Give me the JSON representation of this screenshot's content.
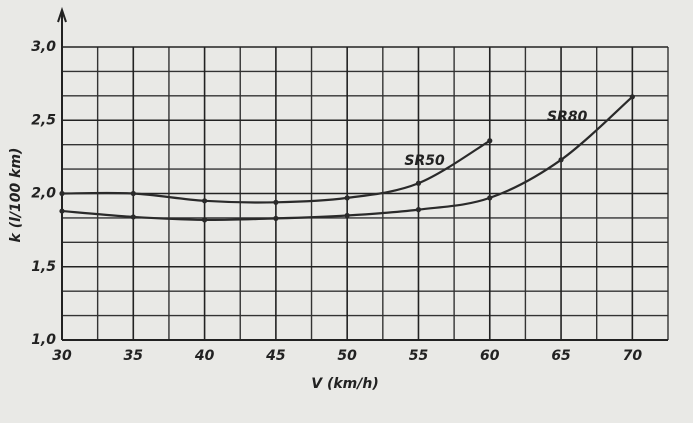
{
  "chart_data": {
    "type": "line",
    "x_label": "V (km/h)",
    "y_label": "k (l/100 km)",
    "xlim": [
      30,
      72.5
    ],
    "ylim": [
      1.0,
      3.0
    ],
    "xticks": [
      30,
      35,
      40,
      45,
      50,
      55,
      60,
      65,
      70
    ],
    "yticks": [
      {
        "value": 1.0,
        "label": "1,0"
      },
      {
        "value": 1.5,
        "label": "1,5"
      },
      {
        "value": 2.0,
        "label": "2,0"
      },
      {
        "value": 2.5,
        "label": "2,5"
      },
      {
        "value": 3.0,
        "label": "3,0"
      }
    ],
    "x_minor_ticks": [
      32.5,
      37.5,
      42.5,
      47.5,
      52.5,
      57.5,
      62.5,
      67.5,
      72.5
    ],
    "y_minor_ticks": [
      1.1667,
      1.3333,
      1.6667,
      1.8333,
      2.1667,
      2.3333,
      2.6667,
      2.8333
    ],
    "grid": true,
    "series": [
      {
        "name": "SR50",
        "color": "#2a2a2a",
        "x": [
          30,
          35,
          40,
          45,
          50,
          55,
          60
        ],
        "values": [
          2.0,
          2.0,
          1.95,
          1.94,
          1.97,
          2.07,
          2.36
        ]
      },
      {
        "name": "SR80",
        "color": "#2a2a2a",
        "x": [
          30,
          35,
          40,
          45,
          50,
          55,
          60,
          65,
          70
        ],
        "values": [
          1.88,
          1.84,
          1.82,
          1.83,
          1.85,
          1.89,
          1.97,
          2.23,
          2.66
        ]
      }
    ]
  }
}
